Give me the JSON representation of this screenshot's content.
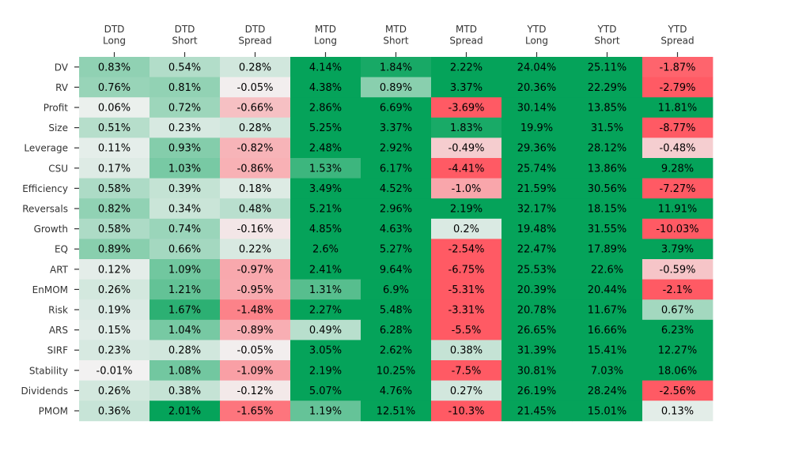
{
  "chart_data": {
    "type": "heatmap",
    "columns": [
      [
        "DTD",
        "Long"
      ],
      [
        "DTD",
        "Short"
      ],
      [
        "DTD",
        "Spread"
      ],
      [
        "MTD",
        "Long"
      ],
      [
        "MTD",
        "Short"
      ],
      [
        "MTD",
        "Spread"
      ],
      [
        "YTD",
        "Long"
      ],
      [
        "YTD",
        "Short"
      ],
      [
        "YTD",
        "Spread"
      ]
    ],
    "rows": [
      "DV",
      "RV",
      "Profit",
      "Size",
      "Leverage",
      "CSU",
      "Efficiency",
      "Reversals",
      "Growth",
      "EQ",
      "ART",
      "EnMOM",
      "Risk",
      "ARS",
      "SIRF",
      "Stability",
      "Dividends",
      "PMOM"
    ],
    "values": [
      [
        0.83,
        0.54,
        0.28,
        4.14,
        1.84,
        2.22,
        24.04,
        25.11,
        -1.87
      ],
      [
        0.76,
        0.81,
        -0.05,
        4.38,
        0.89,
        3.37,
        20.36,
        22.29,
        -2.79
      ],
      [
        0.06,
        0.72,
        -0.66,
        2.86,
        6.69,
        -3.69,
        30.14,
        13.85,
        11.81
      ],
      [
        0.51,
        0.23,
        0.28,
        5.25,
        3.37,
        1.83,
        19.9,
        31.5,
        -8.77
      ],
      [
        0.11,
        0.93,
        -0.82,
        2.48,
        2.92,
        -0.49,
        29.36,
        28.12,
        -0.48
      ],
      [
        0.17,
        1.03,
        -0.86,
        1.53,
        6.17,
        -4.41,
        25.74,
        13.86,
        9.28
      ],
      [
        0.58,
        0.39,
        0.18,
        3.49,
        4.52,
        -1.0,
        21.59,
        30.56,
        -7.27
      ],
      [
        0.82,
        0.34,
        0.48,
        5.21,
        2.96,
        2.19,
        32.17,
        18.15,
        11.91
      ],
      [
        0.58,
        0.74,
        -0.16,
        4.85,
        4.63,
        0.2,
        19.48,
        31.55,
        -10.03
      ],
      [
        0.89,
        0.66,
        0.22,
        2.6,
        5.27,
        -2.54,
        22.47,
        17.89,
        3.79
      ],
      [
        0.12,
        1.09,
        -0.97,
        2.41,
        9.64,
        -6.75,
        25.53,
        22.6,
        -0.59
      ],
      [
        0.26,
        1.21,
        -0.95,
        1.31,
        6.9,
        -5.31,
        20.39,
        20.44,
        -2.1
      ],
      [
        0.19,
        1.67,
        -1.48,
        2.27,
        5.48,
        -3.31,
        20.78,
        11.67,
        0.67
      ],
      [
        0.15,
        1.04,
        -0.89,
        0.49,
        6.28,
        -5.5,
        26.65,
        16.66,
        6.23
      ],
      [
        0.23,
        0.28,
        -0.05,
        3.05,
        2.62,
        0.38,
        31.39,
        15.41,
        12.27
      ],
      [
        -0.01,
        1.08,
        -1.09,
        2.19,
        10.25,
        -7.5,
        30.81,
        7.03,
        18.06
      ],
      [
        0.26,
        0.38,
        -0.12,
        5.07,
        4.76,
        0.27,
        26.19,
        28.24,
        -2.56
      ],
      [
        0.36,
        2.01,
        -1.65,
        1.19,
        12.51,
        -10.3,
        21.45,
        15.01,
        0.13
      ]
    ],
    "labels": [
      [
        "0.83%",
        "0.54%",
        "0.28%",
        "4.14%",
        "1.84%",
        "2.22%",
        "24.04%",
        "25.11%",
        "-1.87%"
      ],
      [
        "0.76%",
        "0.81%",
        "-0.05%",
        "4.38%",
        "0.89%",
        "3.37%",
        "20.36%",
        "22.29%",
        "-2.79%"
      ],
      [
        "0.06%",
        "0.72%",
        "-0.66%",
        "2.86%",
        "6.69%",
        "-3.69%",
        "30.14%",
        "13.85%",
        "11.81%"
      ],
      [
        "0.51%",
        "0.23%",
        "0.28%",
        "5.25%",
        "3.37%",
        "1.83%",
        "19.9%",
        "31.5%",
        "-8.77%"
      ],
      [
        "0.11%",
        "0.93%",
        "-0.82%",
        "2.48%",
        "2.92%",
        "-0.49%",
        "29.36%",
        "28.12%",
        "-0.48%"
      ],
      [
        "0.17%",
        "1.03%",
        "-0.86%",
        "1.53%",
        "6.17%",
        "-4.41%",
        "25.74%",
        "13.86%",
        "9.28%"
      ],
      [
        "0.58%",
        "0.39%",
        "0.18%",
        "3.49%",
        "4.52%",
        "-1.0%",
        "21.59%",
        "30.56%",
        "-7.27%"
      ],
      [
        "0.82%",
        "0.34%",
        "0.48%",
        "5.21%",
        "2.96%",
        "2.19%",
        "32.17%",
        "18.15%",
        "11.91%"
      ],
      [
        "0.58%",
        "0.74%",
        "-0.16%",
        "4.85%",
        "4.63%",
        "0.2%",
        "19.48%",
        "31.55%",
        "-10.03%"
      ],
      [
        "0.89%",
        "0.66%",
        "0.22%",
        "2.6%",
        "5.27%",
        "-2.54%",
        "22.47%",
        "17.89%",
        "3.79%"
      ],
      [
        "0.12%",
        "1.09%",
        "-0.97%",
        "2.41%",
        "9.64%",
        "-6.75%",
        "25.53%",
        "22.6%",
        "-0.59%"
      ],
      [
        "0.26%",
        "1.21%",
        "-0.95%",
        "1.31%",
        "6.9%",
        "-5.31%",
        "20.39%",
        "20.44%",
        "-2.1%"
      ],
      [
        "0.19%",
        "1.67%",
        "-1.48%",
        "2.27%",
        "5.48%",
        "-3.31%",
        "20.78%",
        "11.67%",
        "0.67%"
      ],
      [
        "0.15%",
        "1.04%",
        "-0.89%",
        "0.49%",
        "6.28%",
        "-5.5%",
        "26.65%",
        "16.66%",
        "6.23%"
      ],
      [
        "0.23%",
        "0.28%",
        "-0.05%",
        "3.05%",
        "2.62%",
        "0.38%",
        "31.39%",
        "15.41%",
        "12.27%"
      ],
      [
        "-0.01%",
        "1.08%",
        "-1.09%",
        "2.19%",
        "10.25%",
        "-7.5%",
        "30.81%",
        "7.03%",
        "18.06%"
      ],
      [
        "0.26%",
        "0.38%",
        "-0.12%",
        "5.07%",
        "4.76%",
        "0.27%",
        "26.19%",
        "28.24%",
        "-2.56%"
      ],
      [
        "0.36%",
        "2.01%",
        "-1.65%",
        "1.19%",
        "12.51%",
        "-10.3%",
        "21.45%",
        "15.01%",
        "0.13%"
      ]
    ],
    "color_range": [
      -2,
      2
    ],
    "colors": {
      "negative": "#ff5a64",
      "neutral": "#f2f2f2",
      "positive": "#05a35a",
      "text": "#000000",
      "label": "#333333"
    },
    "column_labels_position": "top",
    "row_labels_position": "left",
    "grid": false,
    "legend": "none"
  }
}
